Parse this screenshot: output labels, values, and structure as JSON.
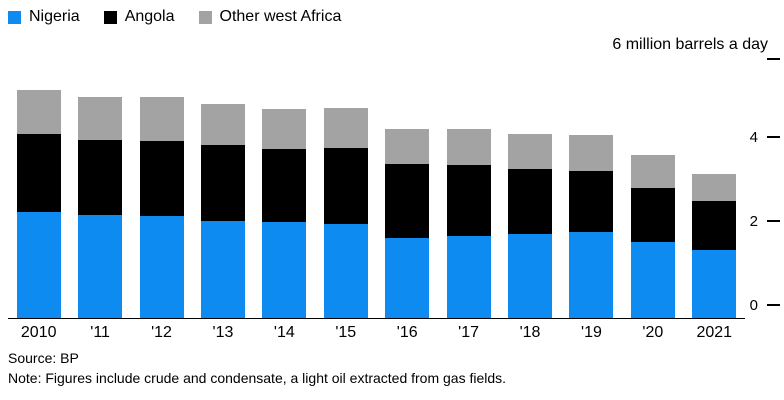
{
  "chart_data": {
    "type": "bar",
    "stacked": true,
    "categories": [
      "2010",
      "'11",
      "'12",
      "'13",
      "'14",
      "'15",
      "'16",
      "'17",
      "'18",
      "'19",
      "'20",
      "2021"
    ],
    "series": [
      {
        "name": "Nigeria",
        "color": "#0d8bf0",
        "values": [
          2.53,
          2.46,
          2.42,
          2.32,
          2.28,
          2.25,
          1.9,
          1.95,
          2.0,
          2.05,
          1.8,
          1.63
        ]
      },
      {
        "name": "Angola",
        "color": "#000000",
        "values": [
          1.86,
          1.78,
          1.8,
          1.8,
          1.75,
          1.8,
          1.76,
          1.7,
          1.55,
          1.45,
          1.3,
          1.15
        ]
      },
      {
        "name": "Other west Africa",
        "color": "#a3a3a3",
        "values": [
          1.05,
          1.02,
          1.05,
          0.98,
          0.95,
          0.95,
          0.85,
          0.85,
          0.82,
          0.85,
          0.78,
          0.66
        ]
      }
    ],
    "axis_label": "6 million barrels a day",
    "yticks": [
      0,
      2,
      4
    ],
    "ylim": [
      0,
      6
    ],
    "legend_position": "top-left",
    "grid": false
  },
  "footer": {
    "source": "Source: BP",
    "note": "Note: Figures include crude and condensate, a light oil extracted from gas fields."
  }
}
